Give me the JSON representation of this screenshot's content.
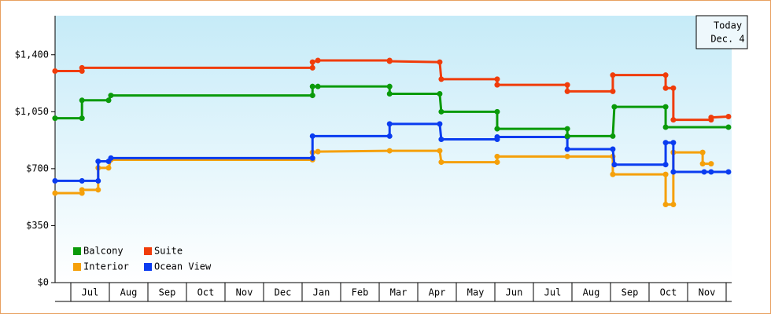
{
  "chart_data": {
    "type": "step-line",
    "categories": [
      "Jul",
      "Aug",
      "Sep",
      "Oct",
      "Nov",
      "Dec",
      "Jan",
      "Feb",
      "Mar",
      "Apr",
      "May",
      "Jun",
      "Jul",
      "Aug",
      "Sep",
      "Oct",
      "Nov"
    ],
    "xlim": [
      -0.41,
      17.14
    ],
    "ylim": [
      0,
      1640
    ],
    "yticks": [
      {
        "value": 0,
        "label": "$0"
      },
      {
        "value": 350,
        "label": "$350"
      },
      {
        "value": 700,
        "label": "$700"
      },
      {
        "value": 1050,
        "label": "$1,050"
      },
      {
        "value": 1400,
        "label": "$1,400"
      }
    ],
    "today_label": "Today",
    "today_date": "Dec. 4",
    "series": [
      {
        "name": "Balcony",
        "color": "#0a9a0a",
        "x": [
          -0.41,
          0.29,
          0.29,
          0.98,
          1.04,
          6.27,
          6.27,
          6.41,
          8.27,
          8.27,
          9.57,
          9.61,
          11.06,
          11.06,
          12.88,
          12.88,
          14.06,
          14.1,
          15.43,
          15.43,
          17.06
        ],
        "values": [
          1010,
          1010,
          1120,
          1120,
          1150,
          1150,
          1205,
          1205,
          1205,
          1160,
          1160,
          1050,
          1050,
          945,
          945,
          900,
          900,
          1080,
          1080,
          955,
          955
        ]
      },
      {
        "name": "Suite",
        "color": "#f03c0a",
        "x": [
          -0.41,
          0.29,
          0.29,
          6.27,
          6.27,
          6.41,
          8.27,
          8.27,
          9.57,
          9.61,
          11.06,
          11.06,
          12.88,
          12.88,
          14.06,
          14.06,
          15.43,
          15.43,
          15.63,
          15.63,
          16.61,
          16.61,
          17.06
        ],
        "values": [
          1300,
          1300,
          1320,
          1320,
          1355,
          1365,
          1365,
          1360,
          1355,
          1250,
          1250,
          1215,
          1215,
          1175,
          1175,
          1275,
          1275,
          1195,
          1195,
          1000,
          1000,
          1015,
          1020
        ]
      },
      {
        "name": "Interior",
        "color": "#f5a00a",
        "x": [
          -0.41,
          0.29,
          0.29,
          0.71,
          0.71,
          0.98,
          1.04,
          6.27,
          6.27,
          6.41,
          8.27,
          9.57,
          9.61,
          11.06,
          11.06,
          12.88,
          14.06,
          14.06,
          15.43,
          15.43,
          15.63,
          15.63,
          16.39,
          16.39,
          16.61
        ],
        "values": [
          550,
          550,
          570,
          570,
          705,
          705,
          755,
          755,
          800,
          805,
          810,
          810,
          740,
          740,
          775,
          775,
          775,
          665,
          665,
          480,
          480,
          800,
          800,
          730,
          730
        ]
      },
      {
        "name": "Ocean View",
        "color": "#0a3cf0",
        "x": [
          -0.41,
          0.29,
          0.71,
          0.71,
          0.98,
          1.04,
          6.27,
          6.27,
          8.27,
          8.27,
          9.57,
          9.61,
          11.06,
          11.06,
          12.88,
          12.88,
          14.06,
          14.1,
          15.43,
          15.43,
          15.63,
          15.63,
          16.43,
          16.61,
          17.06
        ],
        "values": [
          625,
          625,
          625,
          745,
          745,
          765,
          765,
          900,
          900,
          975,
          975,
          880,
          880,
          895,
          895,
          820,
          820,
          725,
          725,
          860,
          860,
          680,
          680,
          680,
          680
        ]
      }
    ]
  }
}
